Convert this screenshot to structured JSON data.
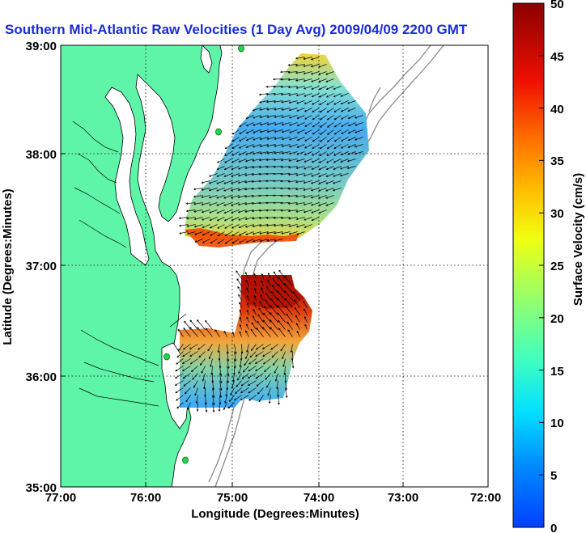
{
  "title": "Southern Mid-Atlantic Raw Velocities (1 Day Avg) 2009/04/09 2200 GMT",
  "xaxis": {
    "label": "Longitude (Degrees:Minutes)",
    "ticks": [
      "77:00",
      "76:00",
      "75:00",
      "74:00",
      "73:00",
      "72:00"
    ]
  },
  "yaxis": {
    "label": "Latitude (Degrees:Minutes)",
    "ticks": [
      "39:00",
      "38:00",
      "37:00",
      "36:00",
      "35:00"
    ]
  },
  "colorbar": {
    "label": "Surface Velocity (cm/s)",
    "ticks": [
      "50",
      "45",
      "40",
      "35",
      "30",
      "25",
      "20",
      "15",
      "10",
      "5",
      "0"
    ],
    "min": 0,
    "max": 50
  },
  "colors": {
    "land": "#5ff5a8",
    "title": "#1a2bd8",
    "station": "#21d64a",
    "bathymetry": "#8a8a8a"
  }
}
